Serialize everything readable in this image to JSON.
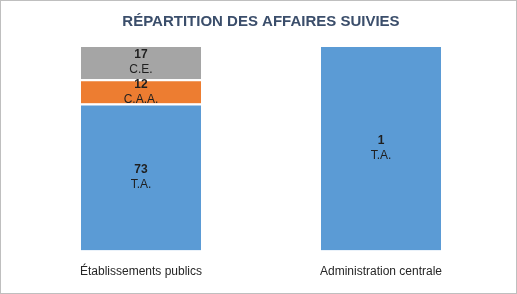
{
  "chart_data": {
    "type": "bar",
    "title": "RÉPARTITION DES AFFAIRES SUIVIES",
    "categories": [
      "Établissements publics",
      "Administration centrale"
    ],
    "series": [
      {
        "name": "T.A.",
        "color": "#5b9bd5",
        "values": [
          73,
          null
        ]
      },
      {
        "name": "C.A.A.",
        "color": "#ed7d31",
        "values": [
          12,
          null
        ]
      },
      {
        "name": "C.E.",
        "color": "#a5a5a5",
        "values": [
          17,
          null
        ]
      },
      {
        "name": "T.A.",
        "color": "#5b9bd5",
        "values": [
          null,
          1
        ],
        "axis": "y2"
      }
    ],
    "stacked": true,
    "data_labels": true,
    "tick_labels": "x",
    "grid": false,
    "ylim": [
      0,
      102
    ],
    "y2lim": [
      0,
      1
    ]
  }
}
